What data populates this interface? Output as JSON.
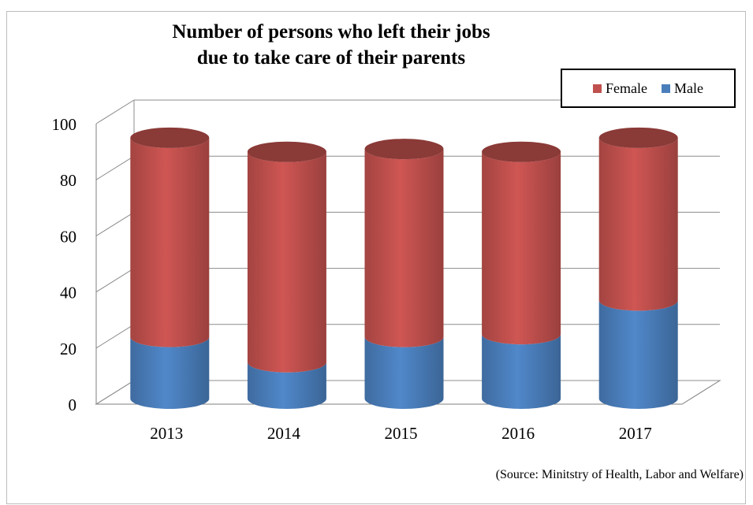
{
  "chart_data": {
    "type": "bar",
    "title_lines": [
      "Number of persons who left their jobs",
      "due to take care of their parents"
    ],
    "categories": [
      "2013",
      "2014",
      "2015",
      "2016",
      "2017"
    ],
    "series": [
      {
        "name": "Male",
        "values": [
          22,
          13,
          22,
          23,
          35
        ],
        "color": "#4a7ebb"
      },
      {
        "name": "Female",
        "values": [
          71,
          75,
          67,
          65,
          58
        ],
        "color": "#c0504d"
      }
    ],
    "stacked": true,
    "ylim": [
      0,
      100
    ],
    "yticks": [
      "0",
      "20",
      "40",
      "60",
      "80",
      "100"
    ],
    "grid": true,
    "legend_position": "top-right",
    "style_3d": "cylinder",
    "source": "(Source: Minitstry of Health, Labor and Welfare)"
  }
}
